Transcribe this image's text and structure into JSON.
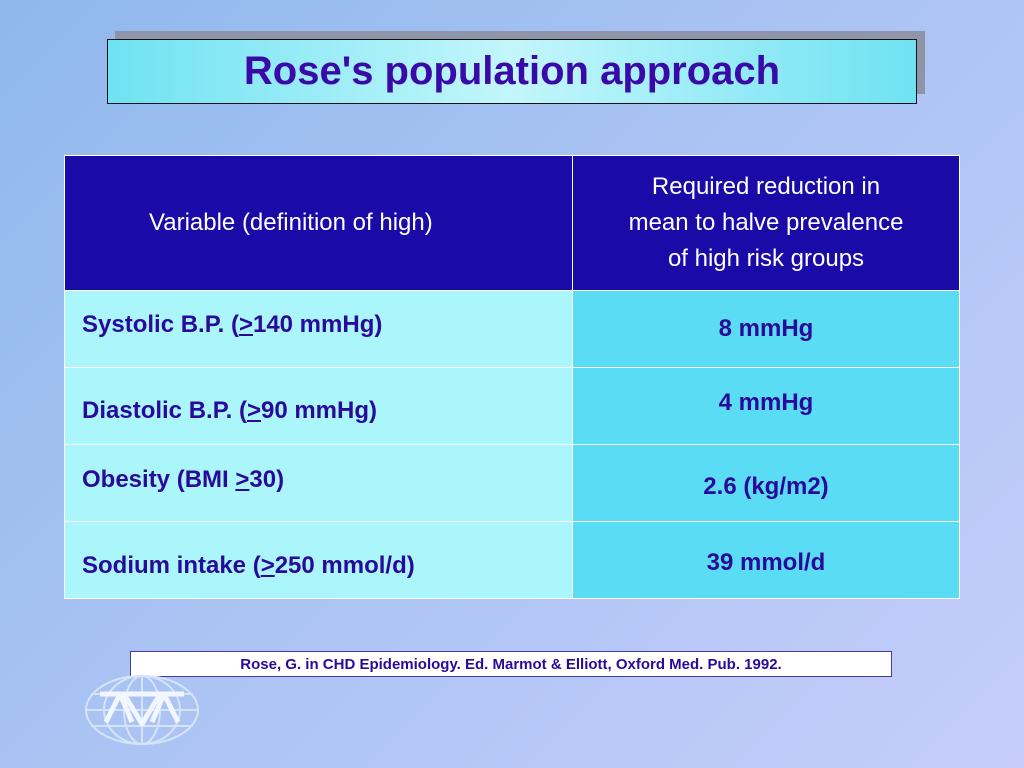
{
  "slide": {
    "title": "Rose's population approach"
  },
  "table": {
    "header": {
      "left": "Variable (definition of high)",
      "right_lines": [
        "Required reduction in",
        "mean to halve prevalence",
        "of high risk groups"
      ]
    },
    "rows": [
      {
        "var_prefix": "Systolic B.P. (",
        "var_symbol": ">",
        "var_suffix": "140 mmHg)",
        "reduction": "8 mmHg"
      },
      {
        "var_prefix": "Diastolic B.P.  (",
        "var_symbol": ">",
        "var_suffix": "90 mmHg)",
        "reduction": "4 mmHg"
      },
      {
        "var_prefix": "Obesity (BMI ",
        "var_symbol": ">",
        "var_suffix": "30)",
        "reduction": "2.6 (kg/m2)"
      },
      {
        "var_prefix": "Sodium intake (",
        "var_symbol": ">",
        "var_suffix": "250 mmol/d)",
        "reduction": "39 mmol/d"
      }
    ]
  },
  "citation": "Rose, G. in CHD Epidemiology.  Ed. Marmot & Elliott, Oxford Med. Pub.  1992.",
  "logo": {
    "icon": "globe-logo-icon"
  }
}
